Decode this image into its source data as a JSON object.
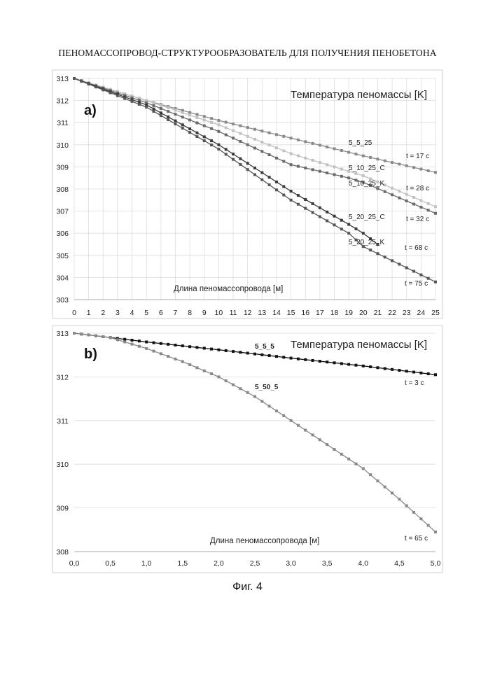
{
  "header": {
    "title": "ПЕНОМАССОПРОВОД-СТРУКТУРООБРАЗОВАТЕЛЬ ДЛЯ ПОЛУЧЕНИЯ ПЕНОБЕТОНА"
  },
  "figure": {
    "caption": "Фиг. 4"
  },
  "chart_data": [
    {
      "type": "line",
      "panel_label": "a)",
      "title": "Температура пеномассы [K]",
      "xlabel": "Длина пеномассопровода [м]",
      "ylabel": "",
      "xlim": [
        0,
        25
      ],
      "ylim": [
        303,
        313
      ],
      "x_ticks": [
        0,
        1,
        2,
        3,
        4,
        5,
        6,
        7,
        8,
        9,
        10,
        11,
        12,
        13,
        14,
        15,
        16,
        17,
        18,
        19,
        20,
        21,
        22,
        23,
        24,
        25
      ],
      "y_ticks": [
        303,
        304,
        305,
        306,
        307,
        308,
        309,
        310,
        311,
        312,
        313
      ],
      "grid": true,
      "series": [
        {
          "name": "5_5_25",
          "end_label": "t = 17 c",
          "color": "#8a8a8a",
          "x": [
            0,
            5,
            10,
            15,
            20,
            25
          ],
          "y": [
            313.0,
            312.0,
            311.1,
            310.3,
            309.5,
            308.75
          ]
        },
        {
          "name": "5_10_25_C",
          "end_label": "t = 28 c",
          "color": "#c2c2c2",
          "x": [
            0,
            5,
            10,
            15,
            19,
            20,
            25
          ],
          "y": [
            313.0,
            312.0,
            310.9,
            309.6,
            308.8,
            308.6,
            307.2
          ]
        },
        {
          "name": "5_10_25_K",
          "end_label": "t = 32 c",
          "color": "#6a6a6a",
          "x": [
            0,
            5,
            10,
            15,
            19,
            20,
            25
          ],
          "y": [
            313.0,
            311.9,
            310.6,
            309.1,
            308.5,
            308.3,
            306.9
          ]
        },
        {
          "name": "5_20_25_C",
          "end_label": "t = 68 c",
          "color": "#3a3a3a",
          "x": [
            0,
            5,
            10,
            15,
            19,
            20,
            21
          ],
          "y": [
            313.0,
            311.8,
            310.0,
            307.9,
            306.4,
            306.0,
            305.5
          ]
        },
        {
          "name": "5_20_25_K",
          "end_label": "t = 75 c",
          "color": "#555555",
          "x": [
            0,
            5,
            10,
            15,
            19,
            20,
            25
          ],
          "y": [
            313.0,
            311.7,
            309.8,
            307.5,
            306.0,
            305.4,
            303.8
          ]
        }
      ]
    },
    {
      "type": "line",
      "panel_label": "b)",
      "title": "Температура пеномассы [K]",
      "xlabel": "Длина пеномассопровода [м]",
      "ylabel": "",
      "xlim": [
        0,
        5
      ],
      "ylim": [
        308,
        313
      ],
      "x_ticks": [
        "0,0",
        "0,5",
        "1,0",
        "1,5",
        "2,0",
        "2,5",
        "3,0",
        "3,5",
        "4,0",
        "4,5",
        "5,0"
      ],
      "y_ticks": [
        308,
        309,
        310,
        311,
        312,
        313
      ],
      "grid": false,
      "series": [
        {
          "name": "5_5_5",
          "end_label": "t = 3 c",
          "color": "#111111",
          "x": [
            0,
            1,
            2,
            3,
            4,
            5
          ],
          "y": [
            313.0,
            312.8,
            312.62,
            312.43,
            312.25,
            312.05
          ]
        },
        {
          "name": "5_50_5",
          "end_label": "t = 65 c",
          "color": "#888888",
          "x": [
            0,
            0.5,
            1.0,
            1.5,
            2.0,
            2.5,
            3.0,
            3.5,
            4.0,
            4.5,
            5.0
          ],
          "y": [
            313.0,
            312.9,
            312.65,
            312.35,
            312.0,
            311.55,
            311.0,
            310.45,
            309.9,
            309.2,
            308.45
          ]
        }
      ]
    }
  ]
}
